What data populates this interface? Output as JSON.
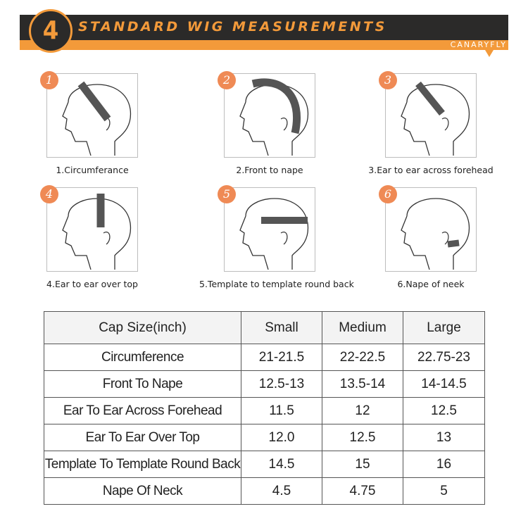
{
  "header": {
    "number": "4",
    "title": "STANDARD WIG MEASUREMENTS",
    "brand": "CANARYFLY",
    "colors": {
      "accent": "#f39a3a",
      "dark": "#2b2a29",
      "badge": "#ef8a55"
    }
  },
  "steps": [
    {
      "num": "1",
      "label": "1.Circumferance",
      "strap": "circumference"
    },
    {
      "num": "2",
      "label": "2.Front to nape",
      "strap": "front-to-nape"
    },
    {
      "num": "3",
      "label": "3.Ear to ear across forehead",
      "strap": "forehead"
    },
    {
      "num": "4",
      "label": "4.Ear to ear over top",
      "strap": "over-top"
    },
    {
      "num": "5",
      "label": "5.Template to template round back",
      "strap": "round-back"
    },
    {
      "num": "6",
      "label": "6.Nape of neek",
      "strap": "nape"
    }
  ],
  "table": {
    "headers": [
      "Cap Size(inch)",
      "Small",
      "Medium",
      "Large"
    ],
    "rows": [
      [
        "Circumference",
        "21-21.5",
        "22-22.5",
        "22.75-23"
      ],
      [
        "Front To Nape",
        "12.5-13",
        "13.5-14",
        "14-14.5"
      ],
      [
        "Ear To Ear Across Forehead",
        "11.5",
        "12",
        "12.5"
      ],
      [
        "Ear To Ear Over Top",
        "12.0",
        "12.5",
        "13"
      ],
      [
        "Template To Template Round Back",
        "14.5",
        "15",
        "16"
      ],
      [
        "Nape Of Neck",
        "4.5",
        "4.75",
        "5"
      ]
    ]
  }
}
